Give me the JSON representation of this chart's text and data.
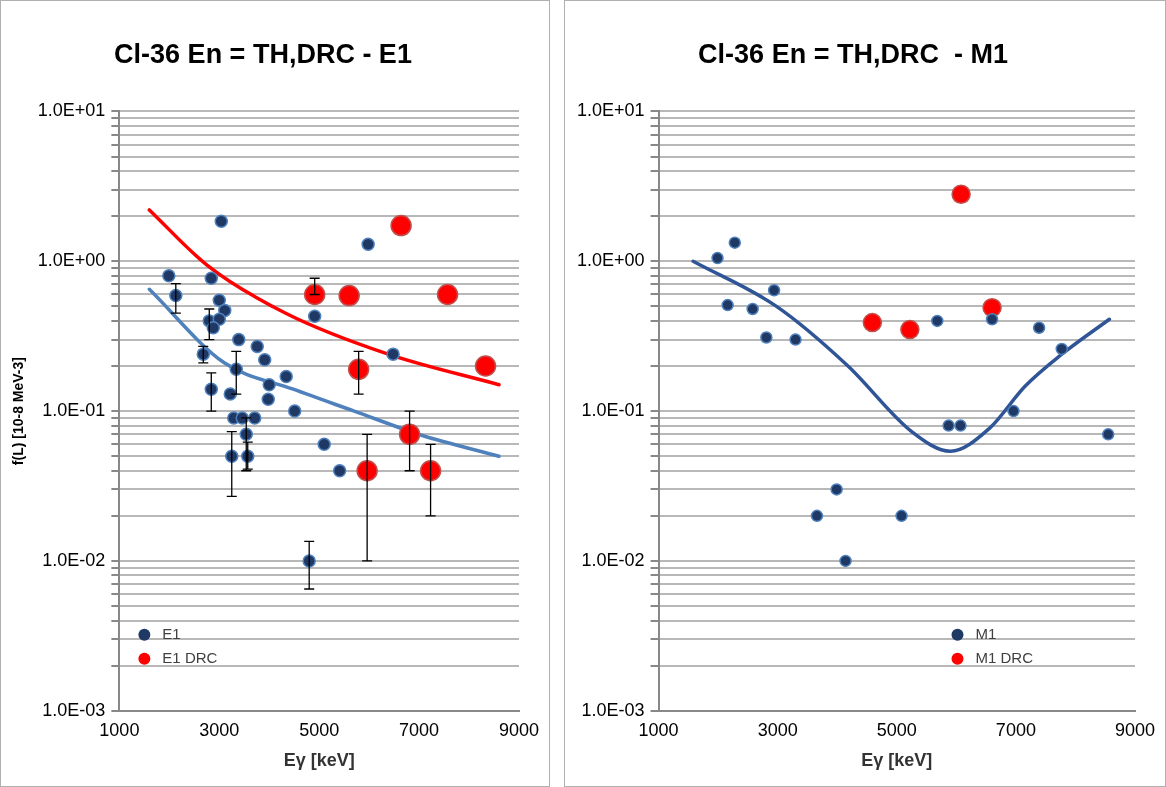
{
  "chart_data": [
    {
      "type": "scatter",
      "title": "Cl-36 En = TH,DRC - E1",
      "xlabel": "Eγ [keV]",
      "ylabel": "f(L) [10-8 MeV-3]",
      "log": "y",
      "grid": "y",
      "legend": "bottom left",
      "marker": "circle",
      "xlim": [
        1000,
        9000
      ],
      "xticks": [
        1000,
        3000,
        5000,
        7000,
        9000
      ],
      "ylim": [
        0.001,
        10
      ],
      "yticks": [
        {
          "value": 0.001,
          "label": "1.0E-03"
        },
        {
          "value": 0.002,
          "label": null
        },
        {
          "value": 0.003,
          "label": null
        },
        {
          "value": 0.004,
          "label": null
        },
        {
          "value": 0.005,
          "label": null
        },
        {
          "value": 0.006,
          "label": null
        },
        {
          "value": 0.007,
          "label": null
        },
        {
          "value": 0.008,
          "label": null
        },
        {
          "value": 0.009,
          "label": null
        },
        {
          "value": 0.01,
          "label": "1.0E-02"
        },
        {
          "value": 0.02,
          "label": null
        },
        {
          "value": 0.03,
          "label": null
        },
        {
          "value": 0.04,
          "label": null
        },
        {
          "value": 0.05,
          "label": null
        },
        {
          "value": 0.06,
          "label": null
        },
        {
          "value": 0.07,
          "label": null
        },
        {
          "value": 0.08,
          "label": null
        },
        {
          "value": 0.09,
          "label": null
        },
        {
          "value": 0.1,
          "label": "1.0E-01"
        },
        {
          "value": 0.2,
          "label": null
        },
        {
          "value": 0.3,
          "label": null
        },
        {
          "value": 0.4,
          "label": null
        },
        {
          "value": 0.5,
          "label": null
        },
        {
          "value": 0.6,
          "label": null
        },
        {
          "value": 0.7,
          "label": null
        },
        {
          "value": 0.8,
          "label": null
        },
        {
          "value": 0.9,
          "label": null
        },
        {
          "value": 1,
          "label": "1.0E+00"
        },
        {
          "value": 2,
          "label": null
        },
        {
          "value": 3,
          "label": null
        },
        {
          "value": 4,
          "label": null
        },
        {
          "value": 5,
          "label": null
        },
        {
          "value": 6,
          "label": null
        },
        {
          "value": 7,
          "label": null
        },
        {
          "value": 8,
          "label": null
        },
        {
          "value": 9,
          "label": null
        },
        {
          "value": 10,
          "label": "1.0E+01"
        }
      ],
      "series": [
        {
          "name": "E1",
          "type": "scatter",
          "color": "#1f3864",
          "x": [
            1990,
            3040,
            2130,
            2840,
            3000,
            3110,
            2800,
            3000,
            2880,
            3390,
            3760,
            3910,
            4340,
            2680,
            3340,
            2840,
            4000,
            3980,
            3220,
            4510,
            3290,
            3460,
            3710,
            3540,
            3250,
            3570,
            5100,
            5410,
            5980,
            4910,
            6480,
            4800
          ],
          "values": [
            0.8,
            1.85,
            0.59,
            0.77,
            0.55,
            0.47,
            0.4,
            0.41,
            0.36,
            0.3,
            0.27,
            0.22,
            0.17,
            0.24,
            0.19,
            0.14,
            0.15,
            0.12,
            0.13,
            0.1,
            0.09,
            0.09,
            0.09,
            0.07,
            0.05,
            0.05,
            0.06,
            0.04,
            1.3,
            0.43,
            0.24,
            0.01
          ],
          "errors": [
            null,
            null,
            [
              0.45,
              0.71
            ],
            null,
            null,
            null,
            [
              0.3,
              0.48
            ],
            null,
            null,
            null,
            null,
            null,
            null,
            [
              0.21,
              0.27
            ],
            [
              0.13,
              0.25
            ],
            [
              0.1,
              0.18
            ],
            null,
            null,
            null,
            null,
            null,
            null,
            null,
            [
              0.04,
              0.09
            ],
            [
              0.027,
              0.073
            ],
            [
              0.041,
              0.062
            ],
            null,
            null,
            null,
            null,
            null,
            [
              0.0065,
              0.0135
            ]
          ]
        },
        {
          "name": "E1 DRC",
          "type": "scatter",
          "color": "#ff0000",
          "x": [
            4910,
            5600,
            6640,
            7570,
            5790,
            8330,
            6810,
            5960,
            7230
          ],
          "values": [
            0.6,
            0.59,
            1.73,
            0.6,
            0.19,
            0.2,
            0.07,
            0.04,
            0.04
          ],
          "errors": [
            [
              0.6,
              0.77
            ],
            null,
            null,
            null,
            [
              0.13,
              0.25
            ],
            null,
            [
              0.04,
              0.1
            ],
            [
              0.01,
              0.07
            ],
            [
              0.02,
              0.06
            ]
          ]
        },
        {
          "type": "line",
          "color": "#4f81bd",
          "marker": "none",
          "x": [
            1600,
            3100,
            4480,
            5700,
            7050,
            8600
          ],
          "values": [
            0.65,
            0.21,
            0.14,
            0.1,
            0.069,
            0.05
          ]
        },
        {
          "type": "line",
          "color": "#ff0000",
          "marker": "none",
          "x": [
            1600,
            2760,
            4330,
            6380,
            8600
          ],
          "values": [
            2.2,
            0.94,
            0.45,
            0.24,
            0.15
          ]
        }
      ]
    },
    {
      "type": "scatter",
      "title": "Cl-36 En = TH,DRC  - M1",
      "xlabel": "Eγ [keV]",
      "log": "y",
      "grid": "y",
      "legend": "bottom right",
      "marker": "circle",
      "xlim": [
        1000,
        9000
      ],
      "xticks": [
        1000,
        3000,
        5000,
        7000,
        9000
      ],
      "ylim": [
        0.001,
        10
      ],
      "yticks": [
        {
          "value": 0.001,
          "label": "1.0E-03"
        },
        {
          "value": 0.002,
          "label": null
        },
        {
          "value": 0.003,
          "label": null
        },
        {
          "value": 0.004,
          "label": null
        },
        {
          "value": 0.005,
          "label": null
        },
        {
          "value": 0.006,
          "label": null
        },
        {
          "value": 0.007,
          "label": null
        },
        {
          "value": 0.008,
          "label": null
        },
        {
          "value": 0.009,
          "label": null
        },
        {
          "value": 0.01,
          "label": "1.0E-02"
        },
        {
          "value": 0.02,
          "label": null
        },
        {
          "value": 0.03,
          "label": null
        },
        {
          "value": 0.04,
          "label": null
        },
        {
          "value": 0.05,
          "label": null
        },
        {
          "value": 0.06,
          "label": null
        },
        {
          "value": 0.07,
          "label": null
        },
        {
          "value": 0.08,
          "label": null
        },
        {
          "value": 0.09,
          "label": null
        },
        {
          "value": 0.1,
          "label": "1.0E-01"
        },
        {
          "value": 0.2,
          "label": null
        },
        {
          "value": 0.3,
          "label": null
        },
        {
          "value": 0.4,
          "label": null
        },
        {
          "value": 0.5,
          "label": null
        },
        {
          "value": 0.6,
          "label": null
        },
        {
          "value": 0.7,
          "label": null
        },
        {
          "value": 0.8,
          "label": null
        },
        {
          "value": 0.9,
          "label": null
        },
        {
          "value": 1,
          "label": "1.0E+00"
        },
        {
          "value": 2,
          "label": null
        },
        {
          "value": 3,
          "label": null
        },
        {
          "value": 4,
          "label": null
        },
        {
          "value": 5,
          "label": null
        },
        {
          "value": 6,
          "label": null
        },
        {
          "value": 7,
          "label": null
        },
        {
          "value": 8,
          "label": null
        },
        {
          "value": 9,
          "label": null
        },
        {
          "value": 10,
          "label": "1.0E+01"
        }
      ],
      "series": [
        {
          "name": "M1",
          "type": "scatter",
          "color": "#1f3864",
          "x": [
            1990,
            2280,
            2160,
            2580,
            2940,
            2810,
            3300,
            3990,
            3660,
            4140,
            5080,
            5680,
            5870,
            6070,
            6600,
            6960,
            7390,
            7770,
            8550
          ],
          "values": [
            1.05,
            1.33,
            0.51,
            0.48,
            0.64,
            0.31,
            0.3,
            0.03,
            0.02,
            0.01,
            0.02,
            0.4,
            0.08,
            0.08,
            0.41,
            0.1,
            0.36,
            0.26,
            0.07
          ]
        },
        {
          "name": "M1 DRC",
          "type": "scatter",
          "color": "#ff0000",
          "x": [
            4590,
            5220,
            6080,
            6600
          ],
          "values": [
            0.39,
            0.35,
            2.8,
            0.49
          ]
        },
        {
          "type": "line",
          "color": "#2f5597",
          "marker": "none",
          "x": [
            1580,
            2980,
            4180,
            5250,
            5900,
            6560,
            7150,
            7750,
            8570
          ],
          "values": [
            1.0,
            0.5,
            0.2,
            0.073,
            0.054,
            0.077,
            0.146,
            0.236,
            0.41
          ]
        }
      ]
    }
  ]
}
